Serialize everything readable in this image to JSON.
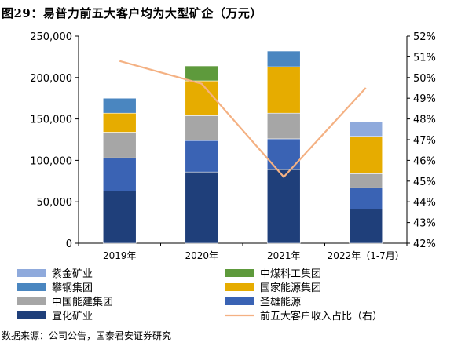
{
  "figure": {
    "title": "图29：易普力前五大客户均为大型矿企（万元）",
    "source": "数据来源：公司公告，国泰君安证券研究"
  },
  "chart_data": {
    "type": "bar",
    "stacked": true,
    "categories": [
      "2019年",
      "2020年",
      "2021年",
      "2022年（1-7月）"
    ],
    "y_left": {
      "ylim": [
        0,
        250000
      ],
      "ticks": [
        "0",
        "50,000",
        "100,000",
        "150,000",
        "200,000",
        "250,000"
      ]
    },
    "y_right": {
      "ylim": [
        42,
        52
      ],
      "ticks": [
        "42%",
        "43%",
        "44%",
        "45%",
        "46%",
        "47%",
        "48%",
        "49%",
        "50%",
        "51%",
        "52%"
      ]
    },
    "series": [
      {
        "name": "宜化矿业",
        "color": "#1f3f7a",
        "values": [
          63000,
          86000,
          89000,
          41000
        ]
      },
      {
        "name": "圣雄能源",
        "color": "#3a63b4",
        "values": [
          40000,
          38000,
          37000,
          26000
        ]
      },
      {
        "name": "中国能建集团",
        "color": "#a6a6a6",
        "values": [
          31000,
          30000,
          31000,
          17000
        ]
      },
      {
        "name": "国家能源集团",
        "color": "#e6ac00",
        "values": [
          23000,
          42000,
          56000,
          45000
        ]
      },
      {
        "name": "攀钢集团",
        "color": "#4a86c0",
        "values": [
          18000,
          0,
          19000,
          0
        ]
      },
      {
        "name": "中煤科工集团",
        "color": "#5e9a3c",
        "values": [
          0,
          18000,
          0,
          0
        ]
      },
      {
        "name": "紫金矿业",
        "color": "#8faadc",
        "values": [
          0,
          0,
          0,
          18000
        ]
      }
    ],
    "line": {
      "name": "前五大客户收入占比（右）",
      "color": "#f4b183",
      "values": [
        50.8,
        49.7,
        45.2,
        49.5
      ]
    },
    "legend": {
      "placement": "bottom",
      "order": [
        "紫金矿业",
        "中煤科工集团",
        "攀钢集团",
        "国家能源集团",
        "中国能建集团",
        "圣雄能源",
        "宜化矿业",
        "前五大客户收入占比（右）"
      ]
    }
  }
}
